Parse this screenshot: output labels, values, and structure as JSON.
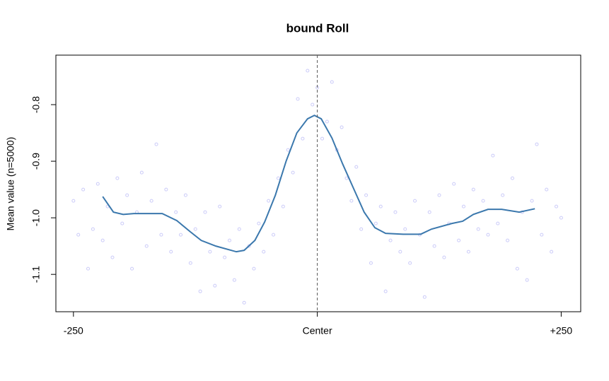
{
  "chart_data": {
    "type": "scatter",
    "title": "bound Roll",
    "y_label": "Mean value (n=5000)",
    "xlim": [
      -268,
      270
    ],
    "ylim": [
      -1.166,
      -0.7125
    ],
    "xticks": [
      -250,
      {
        "value": 0,
        "label": "Center"
      },
      {
        "value": 250,
        "label": "+250"
      }
    ],
    "yticks": [
      -0.8,
      -0.9,
      {
        "value": -1,
        "label": "-1.0"
      },
      -1.1
    ],
    "vline": 0,
    "series": [
      {
        "type": "scatter",
        "color": "#8c8cf0",
        "x": [
          -250,
          -245,
          -240,
          -235,
          -230,
          -225,
          -220,
          -215,
          -210,
          -205,
          -200,
          -195,
          -190,
          -185,
          -180,
          -175,
          -170,
          -165,
          -160,
          -155,
          -150,
          -145,
          -140,
          -135,
          -130,
          -125,
          -120,
          -115,
          -110,
          -105,
          -100,
          -95,
          -90,
          -85,
          -80,
          -75,
          -70,
          -65,
          -60,
          -55,
          -50,
          -45,
          -40,
          -35,
          -30,
          -25,
          -20,
          -15,
          -10,
          -5,
          0,
          5,
          10,
          15,
          20,
          25,
          30,
          35,
          40,
          45,
          50,
          55,
          60,
          65,
          70,
          75,
          80,
          85,
          90,
          95,
          100,
          105,
          110,
          115,
          120,
          125,
          130,
          135,
          140,
          145,
          150,
          155,
          160,
          165,
          170,
          175,
          180,
          185,
          190,
          195,
          200,
          205,
          210,
          215,
          220,
          225,
          230,
          235,
          240,
          245,
          250
        ],
        "values": [
          -0.97,
          -1.03,
          -0.95,
          -1.09,
          -1.02,
          -0.94,
          -1.04,
          -0.98,
          -1.07,
          -0.93,
          -1.01,
          -0.96,
          -1.09,
          -0.99,
          -0.92,
          -1.05,
          -0.97,
          -0.87,
          -1.03,
          -0.95,
          -1.06,
          -0.99,
          -1.03,
          -0.96,
          -1.08,
          -1.02,
          -1.13,
          -0.99,
          -1.06,
          -1.12,
          -0.98,
          -1.07,
          -1.04,
          -1.11,
          -1.02,
          -1.15,
          -1.05,
          -1.09,
          -1.01,
          -1.06,
          -0.97,
          -1.03,
          -0.93,
          -0.98,
          -0.88,
          -0.92,
          -0.79,
          -0.86,
          -0.74,
          -0.8,
          -0.77,
          -0.86,
          -0.83,
          -0.76,
          -0.88,
          -0.84,
          -0.93,
          -0.97,
          -0.91,
          -1.02,
          -0.96,
          -1.08,
          -1.01,
          -0.98,
          -1.13,
          -1.04,
          -0.99,
          -1.06,
          -1.02,
          -1.08,
          -0.97,
          -1.03,
          -1.14,
          -0.99,
          -1.05,
          -0.96,
          -1.07,
          -1.01,
          -0.94,
          -1.04,
          -0.98,
          -1.06,
          -0.95,
          -1.02,
          -0.97,
          -1.03,
          -0.89,
          -1.01,
          -0.96,
          -1.04,
          -0.93,
          -1.09,
          -0.99,
          -1.11,
          -0.97,
          -0.87,
          -1.03,
          -0.95,
          -1.06,
          -0.98,
          -1
        ]
      },
      {
        "type": "line",
        "color": "#3b78ad",
        "x": [
          -220,
          -209,
          -199,
          -188,
          -159,
          -144,
          -130,
          -119,
          -104,
          -83,
          -75,
          -64,
          -54,
          -43,
          -32,
          -21,
          -10,
          -3,
          4,
          15,
          26,
          37,
          48,
          59,
          70,
          88,
          106,
          117,
          138,
          149,
          160,
          175,
          189,
          207,
          223
        ],
        "values": [
          -0.9625,
          -0.99,
          -0.994,
          -0.9925,
          -0.9925,
          -1.005,
          -1.025,
          -1.04,
          -1.05,
          -1.06,
          -1.0575,
          -1.04,
          -1.0075,
          -0.96,
          -0.9,
          -0.85,
          -0.825,
          -0.819,
          -0.825,
          -0.859,
          -0.905,
          -0.9475,
          -0.99,
          -1.0175,
          -1.0275,
          -1.029,
          -1.029,
          -1.02,
          -1.01,
          -1.006,
          -0.994,
          -0.985,
          -0.985,
          -0.99,
          -0.984
        ]
      }
    ]
  }
}
